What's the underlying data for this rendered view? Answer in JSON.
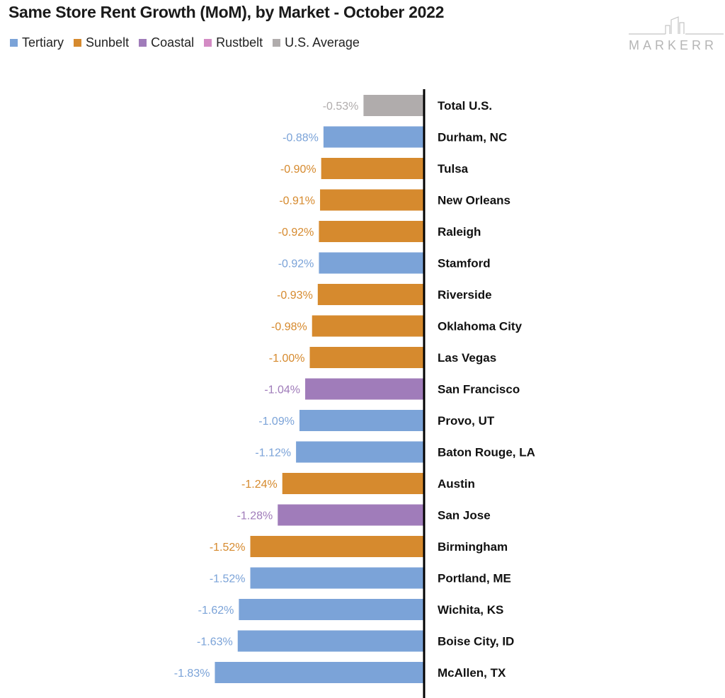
{
  "title": "Same Store Rent Growth (MoM), by Market - October 2022",
  "logo_text": "MARKERR",
  "legend": [
    {
      "label": "Tertiary",
      "color": "#7ba3d8"
    },
    {
      "label": "Sunbelt",
      "color": "#d68a2e"
    },
    {
      "label": "Coastal",
      "color": "#a07cba"
    },
    {
      "label": "Rustbelt",
      "color": "#d38bc4"
    },
    {
      "label": "U.S. Average",
      "color": "#b0acac"
    }
  ],
  "chart_data": {
    "type": "bar",
    "orientation": "horizontal",
    "categories": [
      "Total U.S.",
      "Durham, NC",
      "Tulsa",
      "New Orleans",
      "Raleigh",
      "Stamford",
      "Riverside",
      "Oklahoma City",
      "Las Vegas",
      "San Francisco",
      "Provo, UT",
      "Baton Rouge, LA",
      "Austin",
      "San Jose",
      "Birmingham",
      "Portland, ME",
      "Wichita, KS",
      "Boise City, ID",
      "McAllen, TX"
    ],
    "values": [
      -0.53,
      -0.88,
      -0.9,
      -0.91,
      -0.92,
      -0.92,
      -0.93,
      -0.98,
      -1.0,
      -1.04,
      -1.09,
      -1.12,
      -1.24,
      -1.28,
      -1.52,
      -1.52,
      -1.62,
      -1.63,
      -1.83
    ],
    "value_labels": [
      "-0.53%",
      "-0.88%",
      "-0.90%",
      "-0.91%",
      "-0.92%",
      "-0.92%",
      "-0.93%",
      "-0.98%",
      "-1.00%",
      "-1.04%",
      "-1.09%",
      "-1.12%",
      "-1.24%",
      "-1.28%",
      "-1.52%",
      "-1.52%",
      "-1.62%",
      "-1.63%",
      "-1.83%"
    ],
    "groups": [
      "U.S. Average",
      "Tertiary",
      "Sunbelt",
      "Sunbelt",
      "Sunbelt",
      "Tertiary",
      "Sunbelt",
      "Sunbelt",
      "Sunbelt",
      "Coastal",
      "Tertiary",
      "Tertiary",
      "Sunbelt",
      "Coastal",
      "Sunbelt",
      "Tertiary",
      "Tertiary",
      "Tertiary",
      "Tertiary"
    ],
    "group_colors": {
      "Tertiary": "#7ba3d8",
      "Sunbelt": "#d68a2e",
      "Coastal": "#a07cba",
      "Rustbelt": "#d38bc4",
      "U.S. Average": "#b0acac"
    },
    "xlim": [
      -2.0,
      0
    ],
    "grid": false,
    "legend_position": "top-left"
  }
}
